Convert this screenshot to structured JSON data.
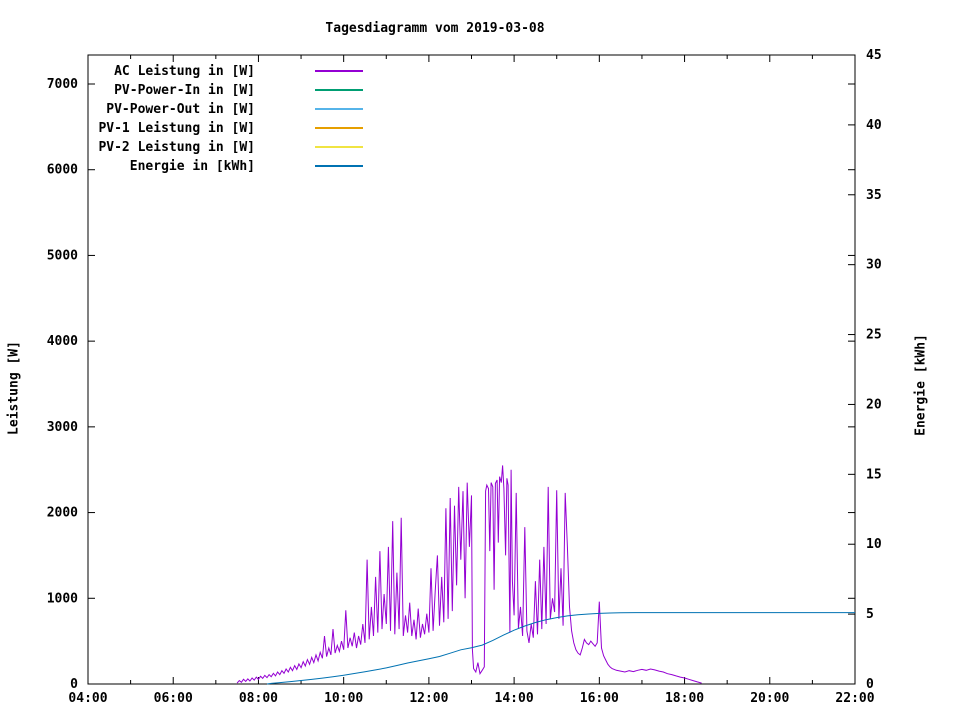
{
  "title": "Tagesdiagramm vom 2019-03-08",
  "colors": {
    "background": "#ffffff",
    "text": "#000000",
    "border": "#000000",
    "ac": "#9400d3",
    "pv_power_in": "#009e73",
    "pv_power_out": "#56b4e9",
    "pv1": "#e69f00",
    "pv2": "#f0e442",
    "energie": "#0072b2"
  },
  "axes": {
    "x": {
      "range": [
        4,
        22
      ],
      "major_ticks": [
        {
          "t": 4,
          "label": "04:00"
        },
        {
          "t": 6,
          "label": "06:00"
        },
        {
          "t": 8,
          "label": "08:00"
        },
        {
          "t": 10,
          "label": "10:00"
        },
        {
          "t": 12,
          "label": "12:00"
        },
        {
          "t": 14,
          "label": "14:00"
        },
        {
          "t": 16,
          "label": "16:00"
        },
        {
          "t": 18,
          "label": "18:00"
        },
        {
          "t": 20,
          "label": "20:00"
        },
        {
          "t": 22,
          "label": "22:00"
        }
      ],
      "minor_ticks": [
        5,
        7,
        9,
        11,
        13,
        15,
        17,
        19,
        21
      ]
    },
    "y_left": {
      "label": "Leistung [W]",
      "range": [
        0,
        7350
      ],
      "ticks": [
        0,
        1000,
        2000,
        3000,
        4000,
        5000,
        6000,
        7000
      ]
    },
    "y_right": {
      "label": "Energie [kWh]",
      "range": [
        0,
        45
      ],
      "ticks": [
        0,
        5,
        10,
        15,
        20,
        25,
        30,
        35,
        40,
        45
      ]
    }
  },
  "legend": {
    "items": [
      {
        "label": "AC Leistung in [W]",
        "color": "#9400d3"
      },
      {
        "label": "PV-Power-In in [W]",
        "color": "#009e73"
      },
      {
        "label": "PV-Power-Out in [W]",
        "color": "#56b4e9"
      },
      {
        "label": "PV-1 Leistung in [W]",
        "color": "#e69f00"
      },
      {
        "label": "PV-2 Leistung in [W]",
        "color": "#f0e442"
      },
      {
        "label": "Energie in [kWh]",
        "color": "#0072b2"
      }
    ]
  },
  "chart_data": {
    "type": "line",
    "title": "Tagesdiagramm vom 2019-03-08",
    "x_unit": "hour_of_day",
    "x_range": [
      4,
      22
    ],
    "y_left_label": "Leistung [W]",
    "y_left_range": [
      0,
      7350
    ],
    "y_right_label": "Energie [kWh]",
    "y_right_range": [
      0,
      45
    ],
    "grid": false,
    "legend_position": "top-left-inside",
    "series": [
      {
        "name": "AC Leistung in [W]",
        "axis": "left",
        "color": "#9400d3",
        "points": [
          [
            7.5,
            10
          ],
          [
            7.55,
            40
          ],
          [
            7.6,
            20
          ],
          [
            7.65,
            55
          ],
          [
            7.7,
            30
          ],
          [
            7.75,
            60
          ],
          [
            7.8,
            35
          ],
          [
            7.85,
            70
          ],
          [
            7.9,
            45
          ],
          [
            7.95,
            80
          ],
          [
            8.0,
            55
          ],
          [
            8.05,
            90
          ],
          [
            8.1,
            65
          ],
          [
            8.15,
            100
          ],
          [
            8.2,
            75
          ],
          [
            8.25,
            110
          ],
          [
            8.3,
            85
          ],
          [
            8.35,
            125
          ],
          [
            8.4,
            95
          ],
          [
            8.45,
            140
          ],
          [
            8.5,
            110
          ],
          [
            8.55,
            155
          ],
          [
            8.6,
            125
          ],
          [
            8.65,
            175
          ],
          [
            8.7,
            140
          ],
          [
            8.75,
            195
          ],
          [
            8.8,
            155
          ],
          [
            8.85,
            215
          ],
          [
            8.9,
            170
          ],
          [
            8.95,
            235
          ],
          [
            9.0,
            190
          ],
          [
            9.05,
            260
          ],
          [
            9.1,
            210
          ],
          [
            9.15,
            285
          ],
          [
            9.2,
            230
          ],
          [
            9.25,
            310
          ],
          [
            9.3,
            250
          ],
          [
            9.35,
            340
          ],
          [
            9.4,
            270
          ],
          [
            9.45,
            370
          ],
          [
            9.5,
            300
          ],
          [
            9.55,
            560
          ],
          [
            9.6,
            320
          ],
          [
            9.65,
            420
          ],
          [
            9.7,
            340
          ],
          [
            9.75,
            640
          ],
          [
            9.8,
            360
          ],
          [
            9.85,
            450
          ],
          [
            9.9,
            380
          ],
          [
            9.95,
            500
          ],
          [
            10.0,
            400
          ],
          [
            10.05,
            860
          ],
          [
            10.1,
            420
          ],
          [
            10.15,
            540
          ],
          [
            10.2,
            440
          ],
          [
            10.25,
            600
          ],
          [
            10.3,
            420
          ],
          [
            10.35,
            560
          ],
          [
            10.4,
            460
          ],
          [
            10.45,
            700
          ],
          [
            10.5,
            480
          ],
          [
            10.55,
            1450
          ],
          [
            10.6,
            520
          ],
          [
            10.65,
            900
          ],
          [
            10.7,
            560
          ],
          [
            10.75,
            1250
          ],
          [
            10.8,
            600
          ],
          [
            10.85,
            1550
          ],
          [
            10.9,
            640
          ],
          [
            10.95,
            1050
          ],
          [
            11.0,
            700
          ],
          [
            11.05,
            1600
          ],
          [
            11.1,
            620
          ],
          [
            11.15,
            1900
          ],
          [
            11.2,
            580
          ],
          [
            11.25,
            1300
          ],
          [
            11.3,
            640
          ],
          [
            11.35,
            1940
          ],
          [
            11.4,
            560
          ],
          [
            11.45,
            800
          ],
          [
            11.5,
            600
          ],
          [
            11.55,
            950
          ],
          [
            11.6,
            560
          ],
          [
            11.65,
            750
          ],
          [
            11.7,
            520
          ],
          [
            11.75,
            880
          ],
          [
            11.8,
            540
          ],
          [
            11.85,
            700
          ],
          [
            11.9,
            580
          ],
          [
            11.95,
            820
          ],
          [
            12.0,
            600
          ],
          [
            12.05,
            1350
          ],
          [
            12.1,
            620
          ],
          [
            12.15,
            1100
          ],
          [
            12.2,
            1500
          ],
          [
            12.25,
            680
          ],
          [
            12.3,
            1250
          ],
          [
            12.35,
            720
          ],
          [
            12.4,
            2050
          ],
          [
            12.45,
            760
          ],
          [
            12.5,
            2170
          ],
          [
            12.55,
            850
          ],
          [
            12.6,
            2080
          ],
          [
            12.65,
            1150
          ],
          [
            12.7,
            2300
          ],
          [
            12.75,
            1450
          ],
          [
            12.8,
            2250
          ],
          [
            12.85,
            1000
          ],
          [
            12.9,
            2350
          ],
          [
            12.95,
            1600
          ],
          [
            13.0,
            2200
          ],
          [
            13.02,
            400
          ],
          [
            13.05,
            180
          ],
          [
            13.1,
            140
          ],
          [
            13.15,
            250
          ],
          [
            13.2,
            120
          ],
          [
            13.25,
            160
          ],
          [
            13.3,
            200
          ],
          [
            13.33,
            2250
          ],
          [
            13.36,
            2320
          ],
          [
            13.4,
            2280
          ],
          [
            13.43,
            1550
          ],
          [
            13.46,
            2350
          ],
          [
            13.5,
            2300
          ],
          [
            13.53,
            1100
          ],
          [
            13.56,
            2340
          ],
          [
            13.6,
            2380
          ],
          [
            13.63,
            1650
          ],
          [
            13.66,
            2420
          ],
          [
            13.7,
            2350
          ],
          [
            13.73,
            2550
          ],
          [
            13.76,
            2280
          ],
          [
            13.8,
            1500
          ],
          [
            13.83,
            2400
          ],
          [
            13.86,
            2320
          ],
          [
            13.9,
            600
          ],
          [
            13.93,
            2500
          ],
          [
            13.96,
            1200
          ],
          [
            14.0,
            800
          ],
          [
            14.05,
            2230
          ],
          [
            14.1,
            650
          ],
          [
            14.15,
            900
          ],
          [
            14.2,
            560
          ],
          [
            14.25,
            1830
          ],
          [
            14.3,
            620
          ],
          [
            14.35,
            480
          ],
          [
            14.4,
            700
          ],
          [
            14.45,
            540
          ],
          [
            14.5,
            1200
          ],
          [
            14.55,
            580
          ],
          [
            14.6,
            1450
          ],
          [
            14.65,
            640
          ],
          [
            14.7,
            1600
          ],
          [
            14.75,
            700
          ],
          [
            14.8,
            2300
          ],
          [
            14.85,
            760
          ],
          [
            14.9,
            1000
          ],
          [
            14.95,
            840
          ],
          [
            15.0,
            2260
          ],
          [
            15.05,
            760
          ],
          [
            15.1,
            1350
          ],
          [
            15.15,
            680
          ],
          [
            15.2,
            2230
          ],
          [
            15.25,
            1600
          ],
          [
            15.3,
            900
          ],
          [
            15.35,
            620
          ],
          [
            15.4,
            480
          ],
          [
            15.45,
            400
          ],
          [
            15.5,
            360
          ],
          [
            15.55,
            340
          ],
          [
            15.6,
            420
          ],
          [
            15.65,
            520
          ],
          [
            15.7,
            480
          ],
          [
            15.75,
            460
          ],
          [
            15.8,
            500
          ],
          [
            15.85,
            470
          ],
          [
            15.9,
            440
          ],
          [
            15.95,
            480
          ],
          [
            16.0,
            960
          ],
          [
            16.05,
            420
          ],
          [
            16.1,
            330
          ],
          [
            16.15,
            280
          ],
          [
            16.2,
            230
          ],
          [
            16.25,
            200
          ],
          [
            16.3,
            180
          ],
          [
            16.4,
            160
          ],
          [
            16.5,
            150
          ],
          [
            16.6,
            140
          ],
          [
            16.7,
            155
          ],
          [
            16.8,
            145
          ],
          [
            16.9,
            160
          ],
          [
            17.0,
            170
          ],
          [
            17.1,
            160
          ],
          [
            17.2,
            175
          ],
          [
            17.3,
            165
          ],
          [
            17.4,
            150
          ],
          [
            17.5,
            140
          ],
          [
            17.6,
            120
          ],
          [
            17.7,
            110
          ],
          [
            17.8,
            95
          ],
          [
            17.9,
            80
          ],
          [
            18.0,
            70
          ],
          [
            18.1,
            55
          ],
          [
            18.2,
            40
          ],
          [
            18.3,
            25
          ],
          [
            18.4,
            10
          ]
        ]
      },
      {
        "name": "PV-Power-In in [W]",
        "axis": "left",
        "color": "#009e73",
        "points": []
      },
      {
        "name": "PV-Power-Out in [W]",
        "axis": "left",
        "color": "#56b4e9",
        "points": []
      },
      {
        "name": "PV-1 Leistung in [W]",
        "axis": "left",
        "color": "#e69f00",
        "points": []
      },
      {
        "name": "PV-2 Leistung in [W]",
        "axis": "left",
        "color": "#f0e442",
        "points": []
      },
      {
        "name": "Energie in [kWh]",
        "axis": "right",
        "color": "#0072b2",
        "points": [
          [
            8.2,
            0
          ],
          [
            8.3,
            0.04
          ],
          [
            8.5,
            0.1
          ],
          [
            8.75,
            0.17
          ],
          [
            9.0,
            0.25
          ],
          [
            9.25,
            0.33
          ],
          [
            9.5,
            0.42
          ],
          [
            9.75,
            0.52
          ],
          [
            10.0,
            0.63
          ],
          [
            10.25,
            0.75
          ],
          [
            10.5,
            0.88
          ],
          [
            10.75,
            1.01
          ],
          [
            11.0,
            1.15
          ],
          [
            11.25,
            1.32
          ],
          [
            11.5,
            1.5
          ],
          [
            11.75,
            1.65
          ],
          [
            12.0,
            1.8
          ],
          [
            12.25,
            1.97
          ],
          [
            12.5,
            2.2
          ],
          [
            12.75,
            2.45
          ],
          [
            13.0,
            2.6
          ],
          [
            13.25,
            2.78
          ],
          [
            13.5,
            3.12
          ],
          [
            13.75,
            3.5
          ],
          [
            14.0,
            3.85
          ],
          [
            14.25,
            4.15
          ],
          [
            14.5,
            4.4
          ],
          [
            14.75,
            4.6
          ],
          [
            15.0,
            4.75
          ],
          [
            15.25,
            4.87
          ],
          [
            15.5,
            4.95
          ],
          [
            15.75,
            5.01
          ],
          [
            16.0,
            5.05
          ],
          [
            16.25,
            5.08
          ],
          [
            16.5,
            5.1
          ],
          [
            17.0,
            5.11
          ],
          [
            18.0,
            5.11
          ],
          [
            19.0,
            5.11
          ],
          [
            20.0,
            5.11
          ],
          [
            21.0,
            5.11
          ],
          [
            22.0,
            5.11
          ]
        ]
      }
    ]
  }
}
